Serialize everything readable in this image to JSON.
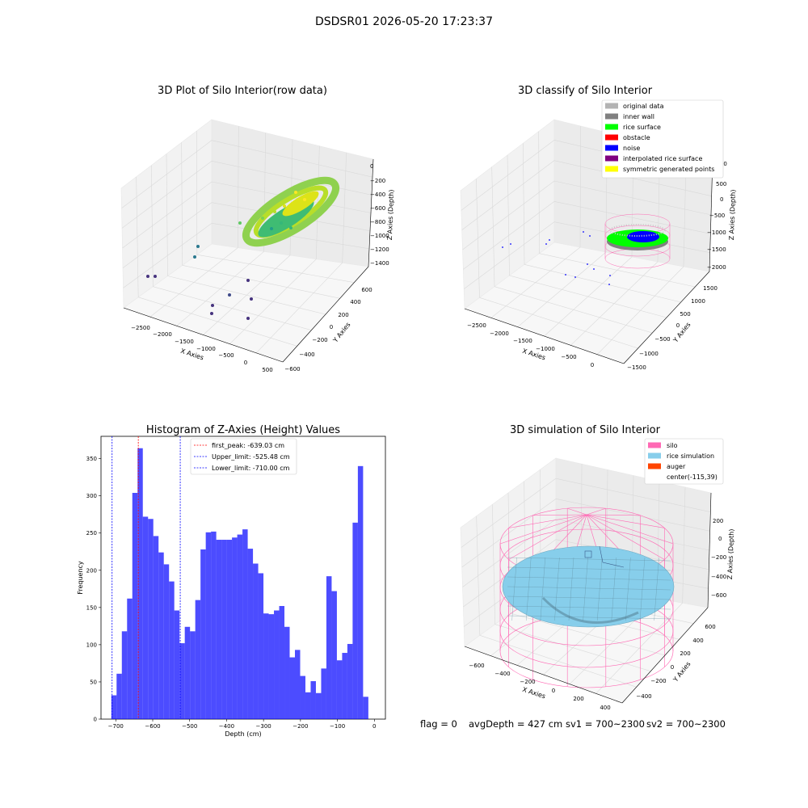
{
  "figure": {
    "title": "DSDSR01 2026-05-20 17:23:37"
  },
  "plot_raw": {
    "title": "3D Plot of Silo Interior(row data)",
    "xlabel": "X Axies",
    "ylabel": "Y Axies",
    "zlabel": "Z Axies (Depth)",
    "x_ticks": [
      "−2500",
      "−2000",
      "−1500",
      "−1000",
      "−500",
      "0",
      "500"
    ],
    "y_ticks": [
      "−600",
      "−400",
      "−200",
      "0",
      "200",
      "400",
      "600"
    ],
    "z_ticks": [
      "0",
      "−200",
      "−400",
      "−600",
      "−800",
      "−1000",
      "−1200",
      "−1400"
    ]
  },
  "plot_classify": {
    "title": "3D classify of Silo Interior",
    "xlabel": "X Axies",
    "ylabel": "Y Axies",
    "zlabel": "Z Axies (Depth)",
    "x_ticks": [
      "−2500",
      "−2000",
      "−1500",
      "−1000",
      "−500",
      "0"
    ],
    "y_ticks": [
      "−1500",
      "−1000",
      "−500",
      "0",
      "500",
      "1000",
      "1500"
    ],
    "z_ticks": [
      "1000",
      "500",
      "0",
      "−500",
      "−1000",
      "−1500",
      "−2000"
    ],
    "legend": [
      {
        "label": "original data",
        "color": "#b3b3b3"
      },
      {
        "label": "inner wall",
        "color": "#808080"
      },
      {
        "label": "rice surface",
        "color": "#00ff00"
      },
      {
        "label": "obstacle",
        "color": "#ff0000"
      },
      {
        "label": "noise",
        "color": "#0000ff"
      },
      {
        "label": "interpolated rice surface",
        "color": "#800080"
      },
      {
        "label": "symmetric generated points",
        "color": "#ffff00"
      }
    ]
  },
  "plot_sim": {
    "title": "3D simulation of Silo Interior",
    "xlabel": "X Axies",
    "ylabel": "Y Axies",
    "zlabel": "Z Axies (Depth)",
    "x_ticks": [
      "−600",
      "−400",
      "−200",
      "0",
      "200",
      "400"
    ],
    "y_ticks": [
      "−400",
      "−200",
      "0",
      "200",
      "400",
      "600"
    ],
    "z_ticks": [
      "200",
      "0",
      "−200",
      "−400",
      "−600"
    ],
    "legend": [
      {
        "label": "silo",
        "color": "#ff69b4"
      },
      {
        "label": "rice simulation",
        "color": "#87ceeb"
      },
      {
        "label": "auger",
        "color": "#ff4500"
      },
      {
        "label": "center(-115,39)",
        "color": ""
      }
    ]
  },
  "status_line": {
    "flag": "flag = 0",
    "avg_depth": "avgDepth = 427 cm",
    "sv1": "sv1 = 700~2300",
    "sv2": "sv2 = 700~2300"
  },
  "chart_data": [
    {
      "type": "scatter",
      "title": "3D Plot of Silo Interior(row data)",
      "xlabel": "X Axies",
      "ylabel": "Y Axies",
      "zlabel": "Z Axies (Depth)",
      "xlim": [
        -2800,
        600
      ],
      "ylim": [
        -650,
        700
      ],
      "zlim": [
        -1500,
        50
      ],
      "colormap": "viridis"
    },
    {
      "type": "scatter",
      "title": "3D classify of Silo Interior",
      "xlabel": "X Axies",
      "ylabel": "Y Axies",
      "zlabel": "Z Axies (Depth)",
      "xlim": [
        -2800,
        400
      ],
      "ylim": [
        -1600,
        1700
      ],
      "zlim": [
        -2300,
        1100
      ],
      "legend_position": "top-right"
    },
    {
      "type": "bar",
      "title": "Histogram of Z-Axies (Height) Values",
      "xlabel": "Depth (cm)",
      "ylabel": "Frequency",
      "xlim": [
        -740,
        30
      ],
      "ylim": [
        0,
        380
      ],
      "x_ticks": [
        -700,
        -600,
        -500,
        -400,
        -300,
        -200,
        -100,
        0
      ],
      "y_ticks": [
        0,
        50,
        100,
        150,
        200,
        250,
        300,
        350
      ],
      "bin_start": -712,
      "bin_width": 14.2,
      "values": [
        32,
        61,
        118,
        162,
        304,
        364,
        272,
        269,
        246,
        224,
        208,
        185,
        146,
        102,
        124,
        118,
        160,
        228,
        251,
        252,
        241,
        241,
        241,
        244,
        248,
        255,
        229,
        209,
        196,
        142,
        141,
        146,
        152,
        124,
        83,
        93,
        58,
        36,
        51,
        35,
        68,
        192,
        172,
        79,
        89,
        101,
        264,
        340,
        30
      ],
      "bar_color": "#0000ff",
      "vlines": [
        {
          "x": -639.03,
          "label": "first_peak: -639.03 cm",
          "color": "#ff0000"
        },
        {
          "x": -525.48,
          "label": "Upper_limit: -525.48 cm",
          "color": "#0000ff"
        },
        {
          "x": -710.0,
          "label": "Lower_limit: -710.00 cm",
          "color": "#0000ff"
        }
      ],
      "legend_position": "top-center"
    },
    {
      "type": "surface",
      "title": "3D simulation of Silo Interior",
      "xlabel": "X Axies",
      "ylabel": "Y Axies",
      "zlabel": "Z Axies (Depth)",
      "xlim": [
        -700,
        500
      ],
      "ylim": [
        -500,
        700
      ],
      "zlim": [
        -750,
        350
      ],
      "legend_position": "top-right"
    }
  ]
}
